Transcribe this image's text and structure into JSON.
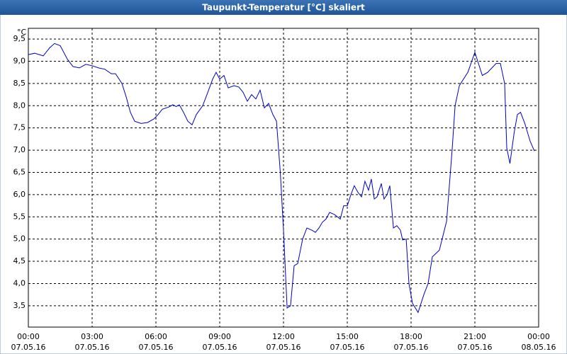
{
  "chart_data": {
    "type": "line",
    "title": "Taupunkt-Temperatur [°C] skaliert",
    "y_unit": "°C",
    "xlim": [
      0,
      24
    ],
    "ylim": [
      3.02,
      9.74
    ],
    "xticks": [
      {
        "value": 0,
        "label": "00:00"
      },
      {
        "value": 3,
        "label": "03:00"
      },
      {
        "value": 6,
        "label": "06:00"
      },
      {
        "value": 9,
        "label": "09:00"
      },
      {
        "value": 12,
        "label": "12:00"
      },
      {
        "value": 15,
        "label": "15:00"
      },
      {
        "value": 18,
        "label": "18:00"
      },
      {
        "value": 21,
        "label": "21:00"
      },
      {
        "value": 24,
        "label": "00:00"
      }
    ],
    "xtick_dates": [
      "07.05.16",
      "07.05.16",
      "07.05.16",
      "07.05.16",
      "07.05.16",
      "07.05.16",
      "07.05.16",
      "07.05.16",
      "08.05.16"
    ],
    "yticks": [
      {
        "value": 3.5,
        "label": "3,5"
      },
      {
        "value": 4,
        "label": "4,0"
      },
      {
        "value": 4.5,
        "label": "4,5"
      },
      {
        "value": 5,
        "label": "5,0"
      },
      {
        "value": 5.5,
        "label": "5,5"
      },
      {
        "value": 6,
        "label": "6,0"
      },
      {
        "value": 6.5,
        "label": "6,5"
      },
      {
        "value": 7,
        "label": "7,0"
      },
      {
        "value": 7.5,
        "label": "7,5"
      },
      {
        "value": 8,
        "label": "8,0"
      },
      {
        "value": 8.5,
        "label": "8,5"
      },
      {
        "value": 9,
        "label": "9,0"
      },
      {
        "value": 9.5,
        "label": "9,5"
      }
    ],
    "grid": true,
    "series": [
      {
        "name": "Taupunkt",
        "color": "#0000c8",
        "x": [
          0,
          0.3,
          0.7,
          1.0,
          1.23,
          1.5,
          1.83,
          2.1,
          2.4,
          2.7,
          3.0,
          3.3,
          3.6,
          3.9,
          4.1,
          4.4,
          4.6,
          4.8,
          5.0,
          5.3,
          5.6,
          5.9,
          6.1,
          6.3,
          6.6,
          6.8,
          6.95,
          7.1,
          7.3,
          7.5,
          7.7,
          7.9,
          8.2,
          8.4,
          8.67,
          8.83,
          9.0,
          9.2,
          9.4,
          9.67,
          9.9,
          10.1,
          10.3,
          10.5,
          10.7,
          10.9,
          11.1,
          11.3,
          11.5,
          11.67,
          11.85,
          12.0,
          12.17,
          12.33,
          12.5,
          12.67,
          12.9,
          13.1,
          13.33,
          13.5,
          13.67,
          13.83,
          14.0,
          14.17,
          14.4,
          14.67,
          14.83,
          15.0,
          15.17,
          15.33,
          15.5,
          15.67,
          15.83,
          16.0,
          16.13,
          16.27,
          16.4,
          16.6,
          16.73,
          16.87,
          17.0,
          17.17,
          17.33,
          17.5,
          17.6,
          17.77,
          17.9,
          18.07,
          18.33,
          18.6,
          18.8,
          19.0,
          19.33,
          19.67,
          19.93,
          20.07,
          20.27,
          20.67,
          21.0,
          21.35,
          21.6,
          22.0,
          22.2,
          22.4,
          22.5,
          22.65,
          22.85,
          23.0,
          23.15,
          23.35,
          23.6,
          23.8
        ],
        "values": [
          9.15,
          9.18,
          9.12,
          9.3,
          9.4,
          9.35,
          9.05,
          8.88,
          8.85,
          8.93,
          8.9,
          8.85,
          8.82,
          8.72,
          8.72,
          8.5,
          8.2,
          7.85,
          7.65,
          7.6,
          7.62,
          7.7,
          7.8,
          7.92,
          7.97,
          8.02,
          7.98,
          8.02,
          7.85,
          7.65,
          7.57,
          7.8,
          8.0,
          8.25,
          8.6,
          8.75,
          8.6,
          8.68,
          8.4,
          8.45,
          8.42,
          8.3,
          8.1,
          8.25,
          8.15,
          8.35,
          7.95,
          8.05,
          7.8,
          7.65,
          6.5,
          5.2,
          3.45,
          3.5,
          4.4,
          4.45,
          5.0,
          5.25,
          5.2,
          5.15,
          5.25,
          5.38,
          5.45,
          5.6,
          5.55,
          5.45,
          5.75,
          5.75,
          6.0,
          6.2,
          6.05,
          5.95,
          6.3,
          6.1,
          6.35,
          5.9,
          5.95,
          6.25,
          5.9,
          6.0,
          6.2,
          5.25,
          5.3,
          5.2,
          4.98,
          5.0,
          4.0,
          3.55,
          3.35,
          3.75,
          4.0,
          4.6,
          4.75,
          5.4,
          7.0,
          8.0,
          8.45,
          8.75,
          9.2,
          8.68,
          8.75,
          8.95,
          8.95,
          8.5,
          7.05,
          6.7,
          7.4,
          7.8,
          7.85,
          7.6,
          7.2,
          6.98
        ]
      }
    ]
  }
}
